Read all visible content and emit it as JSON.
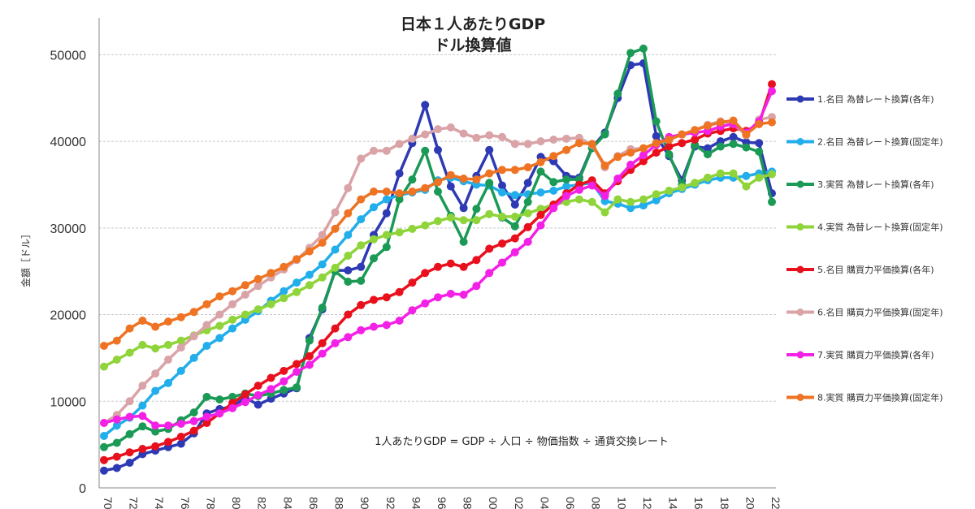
{
  "chart_data": {
    "type": "line",
    "title": "日本１人あたりGDP",
    "subtitle": "ドル換算値",
    "ylabel": "金額［ドル］",
    "annotation": "1人あたりGDP = GDP ÷ 人口 ÷ 物価指数 ÷ 通貨交換レート",
    "ylim": [
      0,
      55000
    ],
    "yticks": [
      0,
      10000,
      20000,
      30000,
      40000,
      50000
    ],
    "ytick_labels": [
      "0",
      "10000",
      "20000",
      "30000",
      "40000",
      "50000"
    ],
    "xlim": [
      1970,
      2022
    ],
    "xticks": [
      1970,
      1972,
      1974,
      1976,
      1978,
      1980,
      1982,
      1984,
      1986,
      1988,
      1990,
      1992,
      1994,
      1996,
      1998,
      2000,
      2002,
      2004,
      2006,
      2008,
      2010,
      2012,
      2014,
      2016,
      2018,
      2020,
      2022
    ],
    "xtick_labels": [
      "70",
      "72",
      "74",
      "76",
      "78",
      "80",
      "82",
      "84",
      "86",
      "88",
      "90",
      "92",
      "94",
      "96",
      "98",
      "00",
      "02",
      "04",
      "06",
      "08",
      "10",
      "12",
      "14",
      "16",
      "18",
      "20",
      "22"
    ],
    "grid": "horizontal dashed",
    "legend_position": "right",
    "series": [
      {
        "name": "1.名目 為替レート換算(各年)",
        "color": "#2e3ab4",
        "values": [
          2000,
          2300,
          2900,
          3900,
          4300,
          4700,
          5100,
          6300,
          8600,
          9100,
          9400,
          10400,
          9600,
          10300,
          10900,
          11500,
          17300,
          20600,
          25100,
          25100,
          25500,
          29200,
          31700,
          36300,
          39800,
          44200,
          39000,
          34800,
          32300,
          36000,
          39000,
          34900,
          32700,
          35200,
          38200,
          37700,
          36000,
          35800,
          39300,
          41000,
          45000,
          48800,
          49000,
          40600,
          38300,
          35500,
          39400,
          39200,
          40000,
          40500,
          39900,
          39800,
          34000
        ]
      },
      {
        "name": "2.名目 為替レート換算(固定年)",
        "color": "#22aeea",
        "values": [
          6000,
          7200,
          8100,
          9500,
          11200,
          12100,
          13500,
          15000,
          16400,
          17300,
          18400,
          19400,
          20400,
          21600,
          22700,
          23700,
          24600,
          25800,
          27500,
          29200,
          31000,
          32400,
          33300,
          33800,
          34100,
          34400,
          35500,
          35800,
          35400,
          35000,
          34900,
          34100,
          33800,
          33900,
          34100,
          34300,
          34800,
          35000,
          35200,
          33100,
          32800,
          32300,
          32600,
          33200,
          34000,
          34500,
          35000,
          35500,
          35800,
          35800,
          36000,
          36300,
          36500
        ]
      },
      {
        "name": "3.実質 為替レート換算(各年)",
        "color": "#1a9a55",
        "values": [
          4700,
          5200,
          6200,
          7100,
          6500,
          6800,
          7800,
          8700,
          10500,
          10200,
          10500,
          10900,
          10600,
          10900,
          11300,
          11600,
          17000,
          20800,
          25000,
          23800,
          23900,
          26500,
          27800,
          33300,
          35600,
          38900,
          34200,
          31400,
          28400,
          32200,
          35200,
          31200,
          30200,
          33000,
          36500,
          35300,
          35600,
          35600,
          39200,
          40800,
          45500,
          50200,
          50700,
          42300,
          38500,
          35000,
          39600,
          38500,
          39400,
          39700,
          39300,
          38800,
          33000
        ]
      },
      {
        "name": "4.実質 為替レート換算(固定年)",
        "color": "#8fd43a",
        "values": [
          14000,
          14800,
          15600,
          16500,
          16100,
          16500,
          17000,
          17600,
          18200,
          18700,
          19400,
          20000,
          20600,
          21200,
          21900,
          22600,
          23400,
          24300,
          25400,
          26800,
          28000,
          28700,
          29200,
          29500,
          29900,
          30300,
          30800,
          31200,
          30900,
          30900,
          31600,
          31300,
          31300,
          31700,
          32200,
          32700,
          33000,
          33300,
          33000,
          31800,
          33300,
          33000,
          33300,
          33900,
          34300,
          34700,
          35200,
          35800,
          36300,
          36300,
          34800,
          35800,
          36200
        ]
      },
      {
        "name": "5.名目 購買力平価換算(各年)",
        "color": "#e8101d",
        "values": [
          3200,
          3600,
          4100,
          4500,
          4800,
          5300,
          5900,
          6600,
          7500,
          8600,
          9800,
          10800,
          11800,
          12700,
          13500,
          14300,
          15200,
          16700,
          18400,
          20000,
          21100,
          21700,
          22000,
          22600,
          23700,
          24800,
          25500,
          25900,
          25500,
          26300,
          27600,
          28200,
          28800,
          30100,
          31500,
          32700,
          34000,
          35000,
          35500,
          34000,
          35400,
          36700,
          37700,
          38700,
          39400,
          39800,
          40200,
          40900,
          41200,
          41500,
          41200,
          42000,
          46600
        ]
      },
      {
        "name": "6.名目 購買力平価換算(固定年)",
        "color": "#d9a3a7",
        "values": [
          7500,
          8400,
          10000,
          11800,
          13200,
          14800,
          16200,
          17500,
          18800,
          20000,
          21200,
          22300,
          23300,
          24300,
          25200,
          26300,
          27700,
          29200,
          31800,
          34600,
          38000,
          38900,
          38900,
          39700,
          40300,
          40800,
          41400,
          41600,
          40900,
          40400,
          40700,
          40500,
          39700,
          39700,
          40000,
          40200,
          40300,
          40400,
          39600,
          37000,
          38300,
          39100,
          39200,
          39700,
          40200,
          40800,
          41300,
          41900,
          42300,
          42000,
          40700,
          42500,
          42800
        ]
      },
      {
        "name": "7.実質 購買力平価換算(各年)",
        "color": "#f321e6",
        "values": [
          7500,
          7900,
          8200,
          8300,
          7200,
          7200,
          7400,
          7700,
          8200,
          8600,
          9200,
          9900,
          10700,
          11400,
          12300,
          13400,
          14200,
          15500,
          16700,
          17400,
          18200,
          18600,
          18800,
          19300,
          20500,
          21300,
          22000,
          22400,
          22300,
          23300,
          24800,
          26000,
          27200,
          28400,
          30300,
          32300,
          33700,
          34400,
          34900,
          33700,
          35700,
          37300,
          38400,
          39600,
          40500,
          40800,
          41000,
          41200,
          41700,
          42000,
          41000,
          42300,
          45800
        ]
      },
      {
        "name": "8.実質 購買力平価換算(固定年)",
        "color": "#ee7322",
        "values": [
          16400,
          17000,
          18400,
          19300,
          18600,
          19200,
          19700,
          20300,
          21200,
          22100,
          22700,
          23400,
          24100,
          24800,
          25500,
          26400,
          27300,
          28300,
          29900,
          31700,
          33300,
          34200,
          34200,
          34000,
          34200,
          34600,
          35300,
          36100,
          35700,
          35600,
          36300,
          36700,
          36700,
          37000,
          37600,
          38300,
          39000,
          39800,
          39700,
          37200,
          38200,
          38700,
          39200,
          39800,
          40200,
          40800,
          41300,
          41800,
          42200,
          42400,
          40800,
          42000,
          42200
        ]
      }
    ]
  }
}
